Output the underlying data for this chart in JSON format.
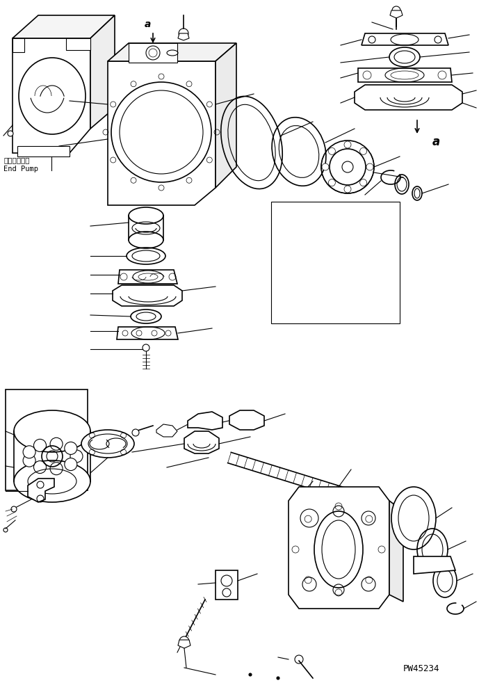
{
  "background_color": "#ffffff",
  "line_color": "#000000",
  "text_color": "#000000",
  "label_end_pump_jp": "エンドポンプ",
  "label_end_pump_en": "End Pump",
  "label_a": "a",
  "watermark": "PW45234",
  "fig_width": 6.89,
  "fig_height": 9.82,
  "dpi": 100
}
